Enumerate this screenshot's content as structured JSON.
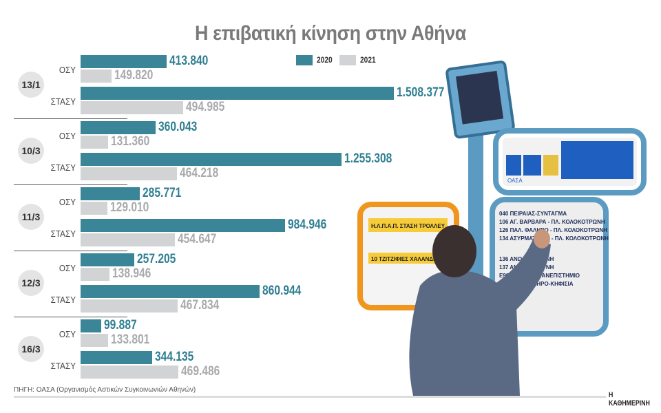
{
  "chart_data": {
    "type": "bar",
    "orientation": "horizontal",
    "title": "Η επιβατική κίνηση στην Αθήνα",
    "legend": {
      "placement": "top-right",
      "entries": [
        "2020",
        "2021"
      ]
    },
    "colors": {
      "2020": "#3a8597",
      "2021": "#d2d3d5"
    },
    "groups": [
      {
        "date": "13/1",
        "rows": [
          {
            "category": "ΟΣΥ",
            "values": [
              413840,
              149820
            ],
            "labels": [
              "413.840",
              "149.820"
            ]
          },
          {
            "category": "ΣΤΑΣΥ",
            "values": [
              1508377,
              494985
            ],
            "labels": [
              "1.508.377",
              "494.985"
            ]
          }
        ]
      },
      {
        "date": "10/3",
        "rows": [
          {
            "category": "ΟΣΥ",
            "values": [
              360043,
              131360
            ],
            "labels": [
              "360.043",
              "131.360"
            ]
          },
          {
            "category": "ΣΤΑΣΥ",
            "values": [
              1255308,
              464218
            ],
            "labels": [
              "1.255.308",
              "464.218"
            ]
          }
        ]
      },
      {
        "date": "11/3",
        "rows": [
          {
            "category": "ΟΣΥ",
            "values": [
              285771,
              129010
            ],
            "labels": [
              "285.771",
              "129.010"
            ]
          },
          {
            "category": "ΣΤΑΣΥ",
            "values": [
              984946,
              454647
            ],
            "labels": [
              "984.946",
              "454.647"
            ]
          }
        ]
      },
      {
        "date": "12/3",
        "rows": [
          {
            "category": "ΟΣΥ",
            "values": [
              257205,
              138946
            ],
            "labels": [
              "257.205",
              "138.946"
            ]
          },
          {
            "category": "ΣΤΑΣΥ",
            "values": [
              860944,
              467834
            ],
            "labels": [
              "860.944",
              "467.834"
            ]
          }
        ]
      },
      {
        "date": "16/3",
        "rows": [
          {
            "category": "ΟΣΥ",
            "values": [
              99887,
              133801
            ],
            "labels": [
              "99.887",
              "133.801"
            ]
          },
          {
            "category": "ΣΤΑΣΥ",
            "values": [
              344135,
              469486
            ],
            "labels": [
              "344.135",
              "469.486"
            ]
          }
        ]
      }
    ]
  },
  "source": "ΠΗΓΗ: ΟΑΣΑ (Οργανισμός Αστικών Συγκοινωνιών Αθηνών)",
  "brand": "Η ΚΑΘΗΜΕΡΙΝΗ",
  "photo_signs": {
    "trolley_sign": "Η.Λ.Π.Α.Π. ΣΤΑΣΗ ΤΡΟΛΛΕΥ",
    "trolley_route": "10 ΤΖΙΤΖΙΦΙΕΣ ΧΑΛΑΝΔΡΙ",
    "logos": "ΟΑΣΑ",
    "routes": [
      "040 ΠΕΙΡΑΙΑΣ-ΣΥΝΤΑΓΜΑ",
      "106 ΑΓ. ΒΑΡΒΑΡΑ - ΠΛ. ΚΟΛΟΚΟΤΡΩΝΗ",
      "126 ΠΑΛ. ΦΑΛΗΡΟ - ΠΛ. ΚΟΛΟΚΟΤΡΩΝΗ",
      "134 ΑΣΥΡΜΑΤΟΣ Α' - ΠΛ. ΚΟΛΟΚΟΤΡΩΝΗ",
      "136 ΑΝΩ Ν. ΣΜΥΡΝΗ",
      "137 ΑΝΩ Ν. ΣΜΥΡΝΗ",
      "Ε90 ΠΕΙΡΑΙΑΣ-ΠΑΝΕΠΙΣΤΗΜΙΟ",
      "550 ΠΑΛ. ΦΑΛΗΡΟ-ΚΗΦΙΣΙΑ"
    ]
  }
}
